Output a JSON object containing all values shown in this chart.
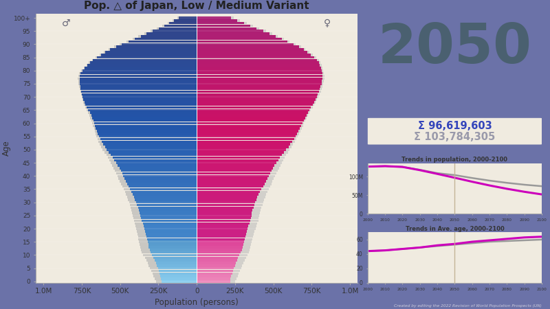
{
  "title": "Pop. △ of Japan, Low / Medium Variant",
  "year": "2050",
  "low_total": "96,619,603",
  "medium_total": "103,784,305",
  "background_outer": "#6b72a8",
  "background_pyramid": "#f0ebe0",
  "year_color": "#4a6070",
  "sum_low_color": "#3344bb",
  "sum_med_color": "#9999aa",
  "trend_pop_title": "Trends in population, 2000-2100",
  "trend_age_title": "Trends in Ave. age, 2000-2100",
  "xlabel": "Population (persons)",
  "ylabel": "Age",
  "credit": "Created by editing the 2022 Revision of World Population Prospects (UN)",
  "male_symbol": "♂",
  "female_symbol": "♀",
  "xtick_labels": [
    "1.0M",
    "750K",
    "500K",
    "250K",
    "0",
    "250K",
    "500K",
    "750K",
    "1.0M"
  ],
  "trend_years": [
    2000,
    2010,
    2020,
    2030,
    2040,
    2050,
    2060,
    2070,
    2080,
    2090,
    2100
  ],
  "trend_pop_low": [
    126.5,
    127.8,
    125.7,
    117.0,
    107.0,
    96.62,
    86.0,
    76.0,
    67.0,
    59.0,
    52.0
  ],
  "trend_pop_med": [
    126.5,
    127.8,
    125.7,
    118.0,
    109.0,
    103.78,
    96.0,
    89.0,
    83.0,
    78.0,
    74.0
  ],
  "trend_age_low": [
    44,
    45,
    47,
    49,
    52,
    54,
    57,
    59,
    61,
    63,
    64
  ],
  "trend_age_med": [
    44,
    45,
    47,
    49,
    51,
    53,
    55,
    57,
    58,
    59,
    60
  ]
}
